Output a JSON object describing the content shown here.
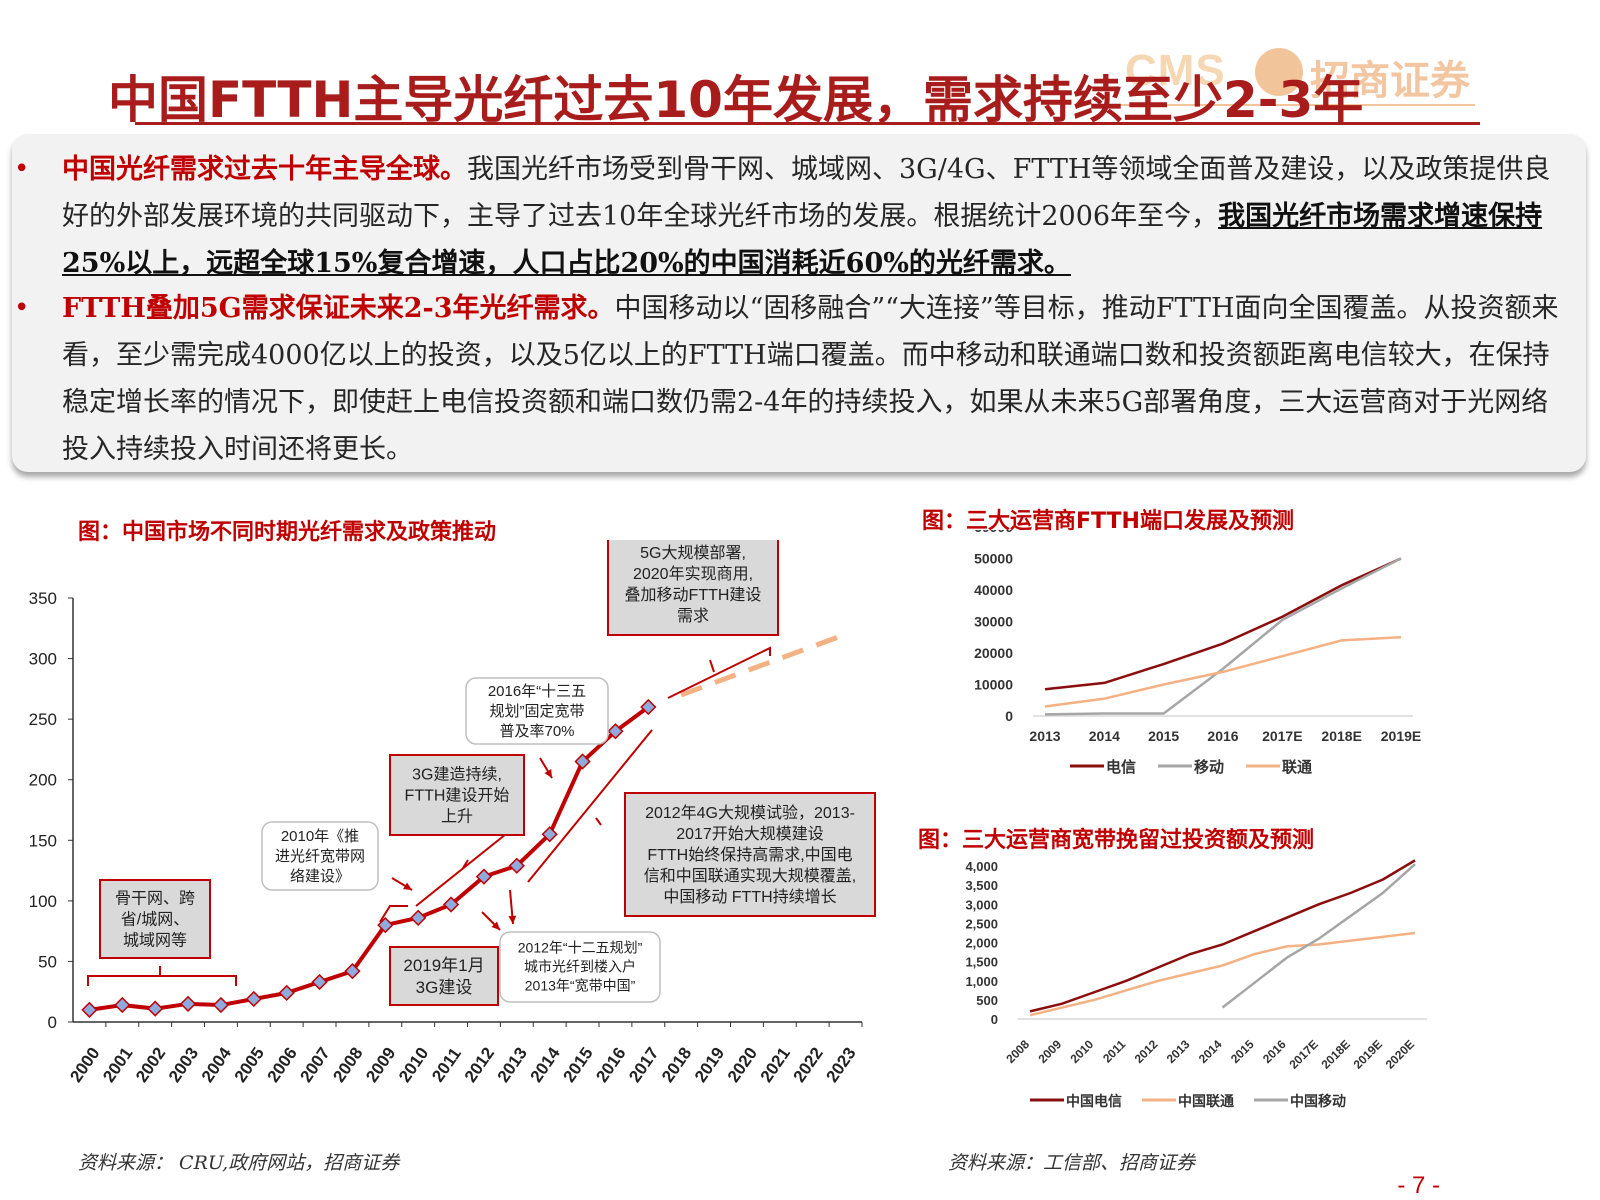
{
  "logo": {
    "latin": "CMS",
    "chinese": "招商证券"
  },
  "title": "中国FTTH主导光纤过去10年发展，需求持续至少2-3年",
  "summary": {
    "p1": {
      "headline": "中国光纤需求过去十年主导全球。",
      "body": "我国光纤市场受到骨干网、城域网、3G/4G、FTTH等领域全面普及建设，以及政策提供良好的外部发展环境的共同驱动下，主导了过去10年全球光纤市场的发展。根据统计2006年至今，",
      "emphasis": "我国光纤市场需求增速保持25%以上，远超全球15%复合增速，人口占比20%的中国消耗近60%的光纤需求。"
    },
    "p2": {
      "headline": "FTTH叠加5G需求保证未来2-3年光纤需求。",
      "body": "中国移动以“固移融合”“大连接”等目标，推动FTTH面向全国覆盖。从投资额来看，至少需完成4000亿以上的投资，以及5亿以上的FTTH端口覆盖。而中移动和联通端口数和投资额距离电信较大，在保持稳定增长率的情况下，即使赶上电信投资额和端口数仍需2-4年的持续投入，如果从未来5G部署角度，三大运营商对于光网络投入持续投入时间还将更长。"
    }
  },
  "captions": {
    "left": "图：中国市场不同时期光纤需求及政策推动",
    "right_top": "图：三大运营商FTTH端口发展及预测",
    "right_bottom": "图：三大运营商宽带挽留过投资额及预测"
  },
  "sources": {
    "left": "资料来源： CRU,政府网站，招商证券",
    "right": "资料来源：工信部、招商证券"
  },
  "page_number": "- 7 -",
  "annotations": [
    {
      "lines": [
        "骨干网、跨",
        "省/城网、",
        "城域网等"
      ]
    },
    {
      "lines": [
        "2010年《推",
        "进光纤宽带网",
        "络建设》"
      ]
    },
    {
      "lines": [
        "3G建造持续,",
        "FTTH建设开始",
        "上升"
      ]
    },
    {
      "lines": [
        "2016年“十三五",
        "规划”固定宽带",
        "普及率70%"
      ]
    },
    {
      "lines": [
        "5G大规模部署,",
        "2020年实现商用,",
        "叠加移动FTTH建设",
        "需求"
      ]
    },
    {
      "lines": [
        "2012年4G大规模试验，2013-",
        "2017开始大规模建设",
        "FTTH始终保持高需求,中国电",
        "信和中国联通实现大规模覆盖,",
        "中国移动 FTTH持续增长"
      ]
    },
    {
      "lines": [
        "2019年1月",
        "3G建设"
      ]
    },
    {
      "lines": [
        "2012年“十二五规划”",
        "城市光纤到楼入户",
        "2013年“宽带中国”"
      ]
    }
  ],
  "chart_data": [
    {
      "type": "line",
      "categories": [
        "2000",
        "2001",
        "2002",
        "2003",
        "2004",
        "2005",
        "2006",
        "2007",
        "2008",
        "2009",
        "2010",
        "2011",
        "2012",
        "2013",
        "2014",
        "2015",
        "2016",
        "2017",
        "2018",
        "2019",
        "2020",
        "2021",
        "2022",
        "2023"
      ],
      "series": [
        {
          "values": [
            10,
            14,
            11,
            15,
            14,
            19,
            24,
            33,
            42,
            80,
            86,
            97,
            120,
            129,
            155,
            215,
            240,
            260,
            null,
            null,
            null,
            null,
            null,
            null
          ],
          "color": "#c00000"
        },
        {
          "forecast": true,
          "x": [
            "2018",
            "2019",
            "2020",
            "2021",
            "2022",
            "2023"
          ],
          "values": [
            270,
            280,
            290,
            300,
            310,
            320
          ],
          "color": "#f4b183"
        }
      ],
      "ylim": [
        0,
        350
      ],
      "yticks": [
        0,
        50,
        100,
        150,
        200,
        250,
        300,
        350
      ],
      "grid": false
    },
    {
      "type": "line",
      "categories": [
        "2013",
        "2014",
        "2015",
        "2016",
        "2017E",
        "2018E",
        "2019E"
      ],
      "series": [
        {
          "name": "电信",
          "values": [
            8500,
            10500,
            16500,
            23000,
            31500,
            41500,
            50000
          ],
          "color": "#8b0e0e"
        },
        {
          "name": "移动",
          "values": [
            500,
            800,
            800,
            15000,
            30500,
            40500,
            50000
          ],
          "color": "#a6a6a6"
        },
        {
          "name": "联通",
          "values": [
            3000,
            5500,
            10000,
            14000,
            19000,
            24000,
            25000
          ],
          "color": "#f4b183"
        }
      ],
      "ylim": [
        0,
        60000
      ],
      "yticks": [
        0,
        10000,
        20000,
        30000,
        40000,
        50000,
        60000
      ],
      "legend": "bottom",
      "grid": false
    },
    {
      "type": "line",
      "categories": [
        "2008",
        "2009",
        "2010",
        "2011",
        "2012",
        "2013",
        "2014",
        "2015",
        "2016",
        "2017E",
        "2018E",
        "2019E",
        "2020E"
      ],
      "series": [
        {
          "name": "中国电信",
          "values": [
            200,
            400,
            700,
            1000,
            1350,
            1700,
            1950,
            2300,
            2650,
            3000,
            3300,
            3650,
            4150
          ],
          "color": "#8b0e0e"
        },
        {
          "name": "中国联通",
          "values": [
            100,
            300,
            500,
            750,
            1000,
            1200,
            1400,
            1700,
            1900,
            1950,
            2050,
            2150,
            2250
          ],
          "color": "#f4b183"
        },
        {
          "name": "中国移动",
          "values": [
            null,
            null,
            null,
            null,
            null,
            null,
            300,
            950,
            1600,
            2100,
            2700,
            3300,
            4050
          ],
          "color": "#a6a6a6"
        }
      ],
      "ylim": [
        0,
        4500
      ],
      "yticks": [
        "0",
        "500",
        "1,000",
        "1,500",
        "2,000",
        "2,500",
        "3,000",
        "3,500",
        "4,000",
        "4,500"
      ],
      "legend": "bottom",
      "grid": false
    }
  ]
}
